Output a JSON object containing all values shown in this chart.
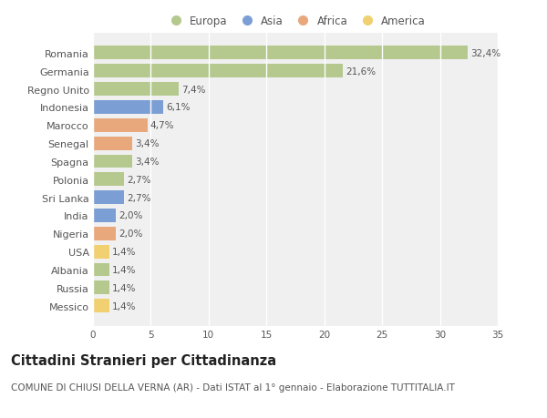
{
  "countries": [
    "Romania",
    "Germania",
    "Regno Unito",
    "Indonesia",
    "Marocco",
    "Senegal",
    "Spagna",
    "Polonia",
    "Sri Lanka",
    "India",
    "Nigeria",
    "USA",
    "Albania",
    "Russia",
    "Messico"
  ],
  "values": [
    32.4,
    21.6,
    7.4,
    6.1,
    4.7,
    3.4,
    3.4,
    2.7,
    2.7,
    2.0,
    2.0,
    1.4,
    1.4,
    1.4,
    1.4
  ],
  "labels": [
    "32,4%",
    "21,6%",
    "7,4%",
    "6,1%",
    "4,7%",
    "3,4%",
    "3,4%",
    "2,7%",
    "2,7%",
    "2,0%",
    "2,0%",
    "1,4%",
    "1,4%",
    "1,4%",
    "1,4%"
  ],
  "continents": [
    "Europa",
    "Europa",
    "Europa",
    "Asia",
    "Africa",
    "Africa",
    "Europa",
    "Europa",
    "Asia",
    "Asia",
    "Africa",
    "America",
    "Europa",
    "Europa",
    "America"
  ],
  "continent_colors": {
    "Europa": "#b5c98e",
    "Asia": "#7b9fd4",
    "Africa": "#e8a87c",
    "America": "#f0d070"
  },
  "legend_order": [
    "Europa",
    "Asia",
    "Africa",
    "America"
  ],
  "fig_background": "#ffffff",
  "plot_background": "#f0f0f0",
  "title": "Cittadini Stranieri per Cittadinanza",
  "subtitle": "COMUNE DI CHIUSI DELLA VERNA (AR) - Dati ISTAT al 1° gennaio - Elaborazione TUTTITALIA.IT",
  "xlim": [
    0,
    35
  ],
  "xticks": [
    0,
    5,
    10,
    15,
    20,
    25,
    30,
    35
  ],
  "grid_color": "#ffffff",
  "bar_height": 0.75,
  "label_fontsize": 7.5,
  "ytick_fontsize": 8,
  "axis_fontsize": 7.5,
  "title_fontsize": 10.5,
  "subtitle_fontsize": 7.5
}
